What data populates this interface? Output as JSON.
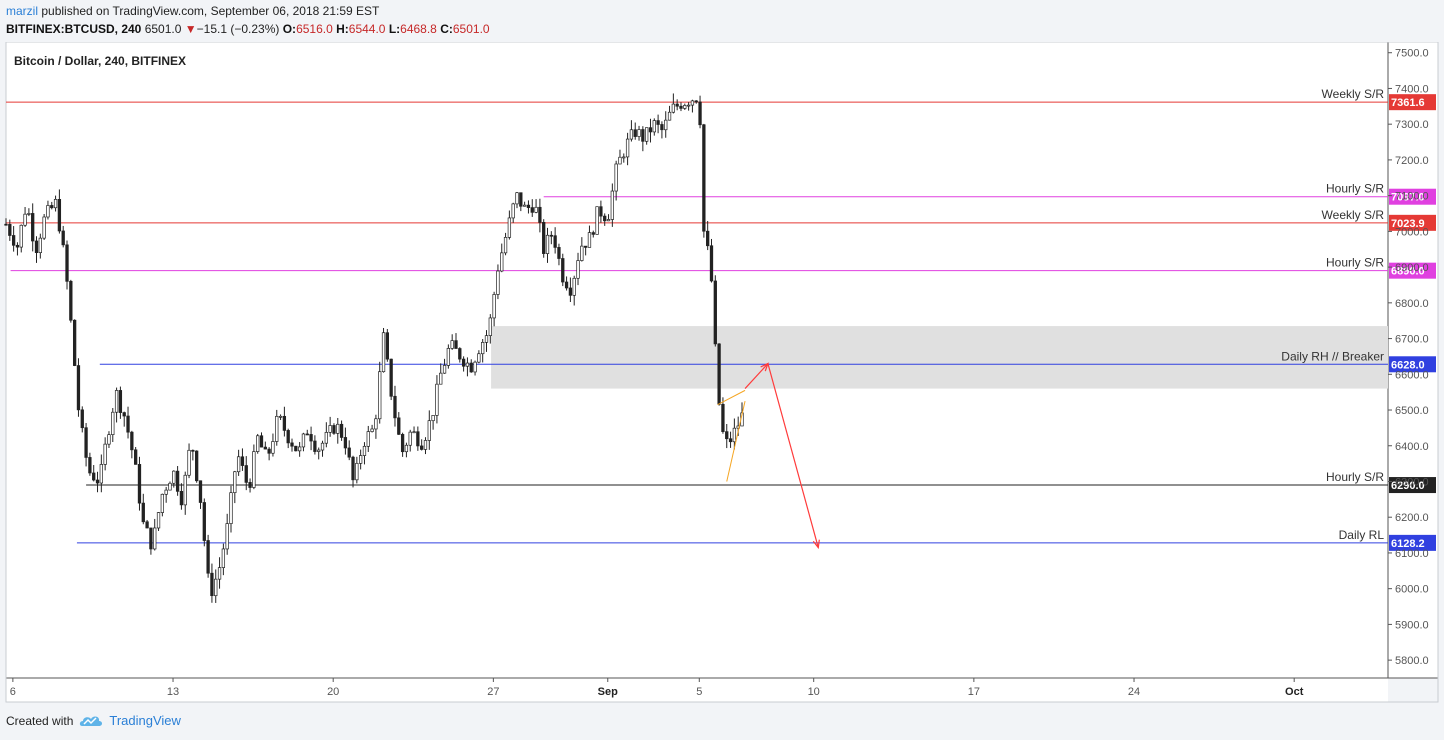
{
  "header": {
    "author": "marzil",
    "published_text": "published on TradingView.com, September 06, 2018 21:59 EST",
    "symbol": "BITFINEX:BTCUSD, 240",
    "last": "6501.0",
    "change_arrow": "▼",
    "change": "−15.1 (−0.23%)",
    "o_label": "O:",
    "o": "6516.0",
    "h_label": "H:",
    "h": "6544.0",
    "l_label": "L:",
    "l": "6468.8",
    "c_label": "C:",
    "c": "6501.0"
  },
  "footer": {
    "created_with": "Created with",
    "brand": "TradingView",
    "logo_icon": "tradingview-cloud-icon"
  },
  "colors": {
    "weekly": "#e53935",
    "hourly": "#e040e0",
    "daily": "#3040e0",
    "hourly_black": "#222222",
    "zone": "#e0e0e0",
    "candle": "#222222",
    "arrow": "#ff3b3b",
    "wedge": "#f5a623",
    "axis_text": "#555555"
  },
  "chart_data": {
    "type": "candlestick",
    "title": "Bitcoin / Dollar, 240, BITFINEX",
    "ylim": [
      5750,
      7530
    ],
    "y_ticks": [
      "5800.0",
      "5900.0",
      "6000.0",
      "6100.0",
      "6200.0",
      "6300.0",
      "6400.0",
      "6500.0",
      "6600.0",
      "6700.0",
      "6800.0",
      "6900.0",
      "7000.0",
      "7100.0",
      "7200.0",
      "7300.0",
      "7400.0",
      "7500.0"
    ],
    "x_ticks": [
      {
        "label": "6",
        "day": 6
      },
      {
        "label": "13",
        "day": 13
      },
      {
        "label": "20",
        "day": 20
      },
      {
        "label": "27",
        "day": 27
      },
      {
        "label": "Sep",
        "day": 32
      },
      {
        "label": "5",
        "day": 36
      },
      {
        "label": "10",
        "day": 41
      },
      {
        "label": "17",
        "day": 48
      },
      {
        "label": "24",
        "day": 55
      },
      {
        "label": "Oct",
        "day": 62
      }
    ],
    "xlim_days": [
      5.7,
      66.1
    ],
    "levels": [
      {
        "name": "Weekly S/R",
        "price_label": "7361.6",
        "value": 7361.6,
        "kind": "weekly",
        "start_day": 5.7
      },
      {
        "name": "Hourly S/R",
        "price_label": "7097.0",
        "value": 7097.0,
        "kind": "hourly",
        "start_day": 29.2
      },
      {
        "name": "Weekly S/R",
        "price_label": "7023.9",
        "value": 7023.9,
        "kind": "weekly",
        "start_day": 5.7
      },
      {
        "name": "Hourly S/R",
        "price_label": "6890.0",
        "value": 6890.0,
        "kind": "hourly",
        "start_day": 5.9
      },
      {
        "name": "Daily RH // Breaker",
        "price_label": "6628.0",
        "value": 6628.0,
        "kind": "daily",
        "start_day": 9.8
      },
      {
        "name": "Hourly S/R",
        "price_label": "6290.0",
        "value": 6290.0,
        "kind": "hourly_black",
        "start_day": 9.2
      },
      {
        "name": "Daily RL",
        "price_label": "6128.2",
        "value": 6128.2,
        "kind": "daily",
        "start_day": 8.8
      }
    ],
    "zone": {
      "start_day": 26.9,
      "from": 6560,
      "to": 6735
    },
    "projection": [
      {
        "day": 38.0,
        "value": 6560
      },
      {
        "day": 39.0,
        "value": 6630
      },
      {
        "day": 41.2,
        "value": 6115
      }
    ],
    "wedge": {
      "upper": [
        {
          "day": 36.8,
          "value": 6515
        },
        {
          "day": 38.0,
          "value": 6555
        }
      ],
      "lower": [
        {
          "day": 37.2,
          "value": 6300
        },
        {
          "day": 38.0,
          "value": 6525
        }
      ]
    },
    "price_path": [
      {
        "day": 5.7,
        "value": 7020
      },
      {
        "day": 6.2,
        "value": 6960
      },
      {
        "day": 6.6,
        "value": 7080
      },
      {
        "day": 7.0,
        "value": 6950
      },
      {
        "day": 7.4,
        "value": 7040
      },
      {
        "day": 7.9,
        "value": 7080
      },
      {
        "day": 8.3,
        "value": 6900
      },
      {
        "day": 8.6,
        "value": 6700
      },
      {
        "day": 8.9,
        "value": 6480
      },
      {
        "day": 9.3,
        "value": 6330
      },
      {
        "day": 9.8,
        "value": 6300
      },
      {
        "day": 10.1,
        "value": 6420
      },
      {
        "day": 10.5,
        "value": 6550
      },
      {
        "day": 10.9,
        "value": 6480
      },
      {
        "day": 11.3,
        "value": 6360
      },
      {
        "day": 11.7,
        "value": 6180
      },
      {
        "day": 12.1,
        "value": 6120
      },
      {
        "day": 12.5,
        "value": 6260
      },
      {
        "day": 13.0,
        "value": 6330
      },
      {
        "day": 13.4,
        "value": 6250
      },
      {
        "day": 13.8,
        "value": 6420
      },
      {
        "day": 14.2,
        "value": 6250
      },
      {
        "day": 14.6,
        "value": 5980
      },
      {
        "day": 15.0,
        "value": 6050
      },
      {
        "day": 15.4,
        "value": 6180
      },
      {
        "day": 15.8,
        "value": 6380
      },
      {
        "day": 16.3,
        "value": 6280
      },
      {
        "day": 16.7,
        "value": 6420
      },
      {
        "day": 17.1,
        "value": 6360
      },
      {
        "day": 17.6,
        "value": 6480
      },
      {
        "day": 18.0,
        "value": 6430
      },
      {
        "day": 18.5,
        "value": 6380
      },
      {
        "day": 18.9,
        "value": 6450
      },
      {
        "day": 19.3,
        "value": 6390
      },
      {
        "day": 19.7,
        "value": 6420
      },
      {
        "day": 20.1,
        "value": 6460
      },
      {
        "day": 20.5,
        "value": 6420
      },
      {
        "day": 20.9,
        "value": 6290
      },
      {
        "day": 21.3,
        "value": 6410
      },
      {
        "day": 21.8,
        "value": 6450
      },
      {
        "day": 22.2,
        "value": 6700
      },
      {
        "day": 22.6,
        "value": 6520
      },
      {
        "day": 23.0,
        "value": 6380
      },
      {
        "day": 23.4,
        "value": 6440
      },
      {
        "day": 23.9,
        "value": 6410
      },
      {
        "day": 24.3,
        "value": 6480
      },
      {
        "day": 24.7,
        "value": 6600
      },
      {
        "day": 25.1,
        "value": 6680
      },
      {
        "day": 25.6,
        "value": 6650
      },
      {
        "day": 26.0,
        "value": 6620
      },
      {
        "day": 26.4,
        "value": 6680
      },
      {
        "day": 26.8,
        "value": 6720
      },
      {
        "day": 27.2,
        "value": 6900
      },
      {
        "day": 27.6,
        "value": 7000
      },
      {
        "day": 28.0,
        "value": 7100
      },
      {
        "day": 28.4,
        "value": 7060
      },
      {
        "day": 28.8,
        "value": 7080
      },
      {
        "day": 29.2,
        "value": 6950
      },
      {
        "day": 29.6,
        "value": 7000
      },
      {
        "day": 30.0,
        "value": 6880
      },
      {
        "day": 30.4,
        "value": 6840
      },
      {
        "day": 30.8,
        "value": 6960
      },
      {
        "day": 31.2,
        "value": 6980
      },
      {
        "day": 31.6,
        "value": 7060
      },
      {
        "day": 32.0,
        "value": 7040
      },
      {
        "day": 32.4,
        "value": 7180
      },
      {
        "day": 32.8,
        "value": 7240
      },
      {
        "day": 33.2,
        "value": 7280
      },
      {
        "day": 33.6,
        "value": 7260
      },
      {
        "day": 34.0,
        "value": 7300
      },
      {
        "day": 34.4,
        "value": 7280
      },
      {
        "day": 34.8,
        "value": 7340
      },
      {
        "day": 35.2,
        "value": 7360
      },
      {
        "day": 35.6,
        "value": 7370
      },
      {
        "day": 36.0,
        "value": 7380
      },
      {
        "day": 36.2,
        "value": 7000
      },
      {
        "day": 36.5,
        "value": 6900
      },
      {
        "day": 36.8,
        "value": 6550
      },
      {
        "day": 37.1,
        "value": 6400
      },
      {
        "day": 37.4,
        "value": 6420
      },
      {
        "day": 37.7,
        "value": 6460
      },
      {
        "day": 38.0,
        "value": 6501
      }
    ]
  }
}
